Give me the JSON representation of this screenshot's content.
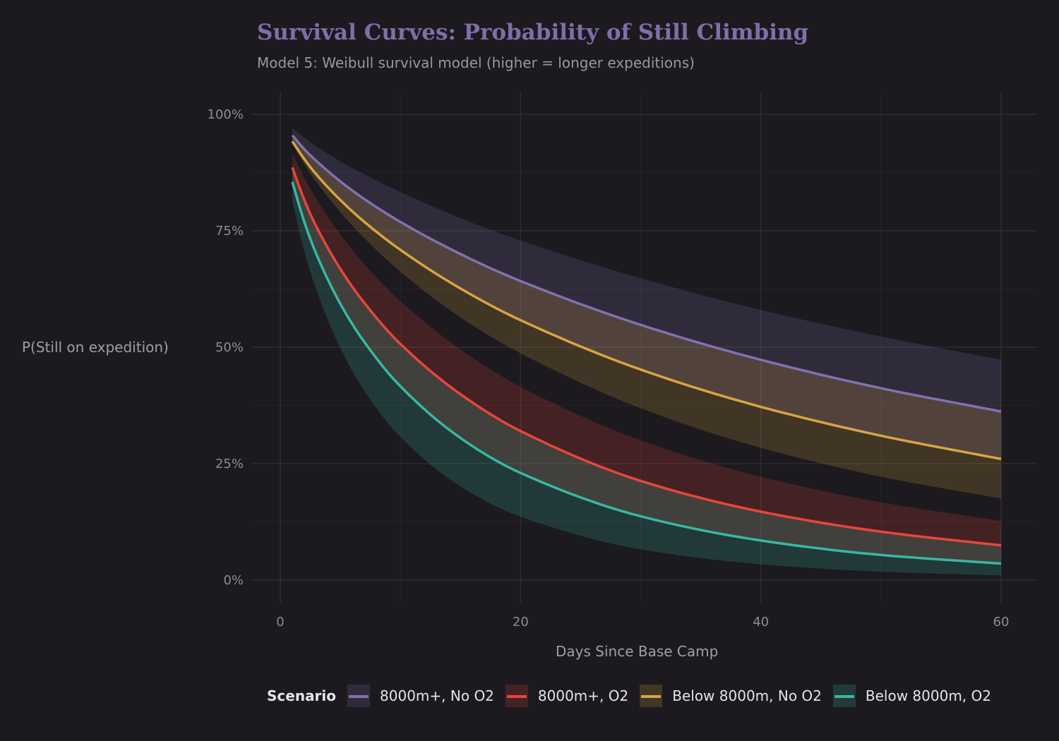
{
  "chart_data": {
    "type": "line",
    "title": "Survival Curves: Probability of Still Climbing",
    "subtitle": "Model 5: Weibull survival model (higher = longer expeditions)",
    "xlabel": "Days Since Base Camp",
    "ylabel": "P(Still on expedition)",
    "xlim": [
      -2.5,
      62.5
    ],
    "ylim": [
      -0.05,
      1.05
    ],
    "x_ticks": [
      0,
      20,
      40,
      60
    ],
    "y_ticks": [
      0,
      0.25,
      0.5,
      0.75,
      1.0
    ],
    "y_tick_labels": [
      "0%",
      "25%",
      "50%",
      "75%",
      "100%"
    ],
    "grid": true,
    "background": "#1c1a1f",
    "legend": {
      "title": "Scenario",
      "placement": "bottom"
    },
    "x": [
      1,
      2,
      3,
      5,
      7,
      10,
      15,
      20,
      30,
      40,
      50,
      60
    ],
    "series": [
      {
        "name": "8000m+, No O2",
        "color": "#8271b0",
        "values": [
          0.955,
          0.925,
          0.9,
          0.856,
          0.818,
          0.769,
          0.7,
          0.642,
          0.548,
          0.473,
          0.412,
          0.362
        ],
        "lower": [
          0.942,
          0.904,
          0.871,
          0.816,
          0.769,
          0.709,
          0.626,
          0.558,
          0.452,
          0.372,
          0.31,
          0.26
        ],
        "upper": [
          0.97,
          0.95,
          0.931,
          0.899,
          0.871,
          0.833,
          0.777,
          0.729,
          0.648,
          0.58,
          0.523,
          0.473
        ]
      },
      {
        "name": "8000m+, O2",
        "color": "#e8463a",
        "values": [
          0.886,
          0.816,
          0.759,
          0.668,
          0.595,
          0.507,
          0.399,
          0.32,
          0.213,
          0.147,
          0.104,
          0.0745
        ],
        "lower": [
          0.855,
          0.769,
          0.7,
          0.593,
          0.511,
          0.416,
          0.305,
          0.23,
          0.137,
          0.085,
          0.054,
          0.0355
        ],
        "upper": [
          0.918,
          0.863,
          0.818,
          0.742,
          0.678,
          0.599,
          0.495,
          0.415,
          0.3,
          0.222,
          0.167,
          0.127
        ]
      },
      {
        "name": "Below 8000m, No O2",
        "color": "#d9a441",
        "values": [
          0.942,
          0.904,
          0.871,
          0.816,
          0.769,
          0.709,
          0.626,
          0.558,
          0.452,
          0.372,
          0.31,
          0.26
        ],
        "lower": [
          0.937,
          0.893,
          0.855,
          0.79,
          0.734,
          0.662,
          0.564,
          0.487,
          0.369,
          0.284,
          0.222,
          0.175
        ],
        "upper": [
          0.955,
          0.925,
          0.9,
          0.856,
          0.818,
          0.769,
          0.7,
          0.642,
          0.548,
          0.473,
          0.412,
          0.362
        ]
      },
      {
        "name": "Below 8000m, O2",
        "color": "#38b8a3",
        "values": [
          0.855,
          0.769,
          0.7,
          0.593,
          0.511,
          0.416,
          0.305,
          0.23,
          0.137,
          0.085,
          0.054,
          0.0355
        ],
        "lower": [
          0.814,
          0.706,
          0.623,
          0.498,
          0.406,
          0.307,
          0.201,
          0.136,
          0.066,
          0.034,
          0.018,
          0.01
        ],
        "upper": [
          0.886,
          0.816,
          0.759,
          0.668,
          0.595,
          0.507,
          0.399,
          0.32,
          0.213,
          0.147,
          0.104,
          0.0745
        ]
      }
    ]
  }
}
